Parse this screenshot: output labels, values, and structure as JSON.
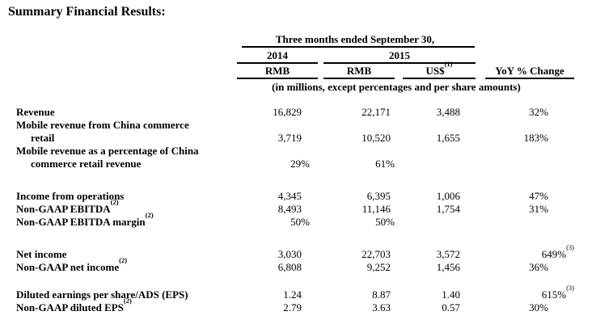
{
  "title": "Summary Financial Results:",
  "colors": {
    "text": "#000000",
    "background": "#ffffff"
  },
  "table": {
    "period_header": "Three months ended September 30,",
    "col_year_2014": "2014",
    "col_year_2015": "2015",
    "col_rmb_2014": "RMB",
    "col_rmb_2015": "RMB",
    "col_usd": "US$",
    "col_usd_sup": "(1)",
    "col_yoy": "YoY % Change",
    "units_note": "(in millions, except percentages and per share amounts)",
    "groups": [
      [
        {
          "label_lines": [
            "Revenue"
          ],
          "label_sup": "",
          "c1": "16,829",
          "c2": "22,171",
          "c3": "3,488",
          "yoy": "32%",
          "yoy_sup": ""
        },
        {
          "label_lines": [
            "Mobile revenue from China commerce",
            "retail"
          ],
          "label_sup": "",
          "c1": "3,719",
          "c2": "10,520",
          "c3": "1,655",
          "yoy": "183%",
          "yoy_sup": ""
        },
        {
          "label_lines": [
            "Mobile revenue as a percentage of China",
            "commerce retail revenue"
          ],
          "label_sup": "",
          "c1": "29%",
          "c2": "61%",
          "c3": "",
          "yoy": "",
          "yoy_sup": ""
        }
      ],
      [
        {
          "label_lines": [
            "Income from operations"
          ],
          "label_sup": "",
          "c1": "4,345",
          "c2": "6,395",
          "c3": "1,006",
          "yoy": "47%",
          "yoy_sup": ""
        },
        {
          "label_lines": [
            "Non-GAAP EBITDA"
          ],
          "label_sup": "(2)",
          "c1": "8,493",
          "c2": "11,146",
          "c3": "1,754",
          "yoy": "31%",
          "yoy_sup": ""
        },
        {
          "label_lines": [
            "Non-GAAP EBITDA margin"
          ],
          "label_sup": "(2)",
          "c1": "50%",
          "c2": "50%",
          "c3": "",
          "yoy": "",
          "yoy_sup": ""
        }
      ],
      [
        {
          "label_lines": [
            "Net income"
          ],
          "label_sup": "",
          "c1": "3,030",
          "c2": "22,703",
          "c3": "3,572",
          "yoy": "649%",
          "yoy_sup": "(3)"
        },
        {
          "label_lines": [
            "Non-GAAP net income"
          ],
          "label_sup": "(2)",
          "c1": "6,808",
          "c2": "9,252",
          "c3": "1,456",
          "yoy": "36%",
          "yoy_sup": ""
        }
      ],
      [
        {
          "label_lines": [
            "Diluted earnings per share/ADS (EPS)"
          ],
          "label_sup": "",
          "c1": "1.24",
          "c2": "8.87",
          "c3": "1.40",
          "yoy": "615%",
          "yoy_sup": "(3)"
        },
        {
          "label_lines": [
            "Non-GAAP diluted EPS"
          ],
          "label_sup": "(2)",
          "c1": "2.79",
          "c2": "3.63",
          "c3": "0.57",
          "yoy": "30%",
          "yoy_sup": ""
        }
      ]
    ]
  }
}
